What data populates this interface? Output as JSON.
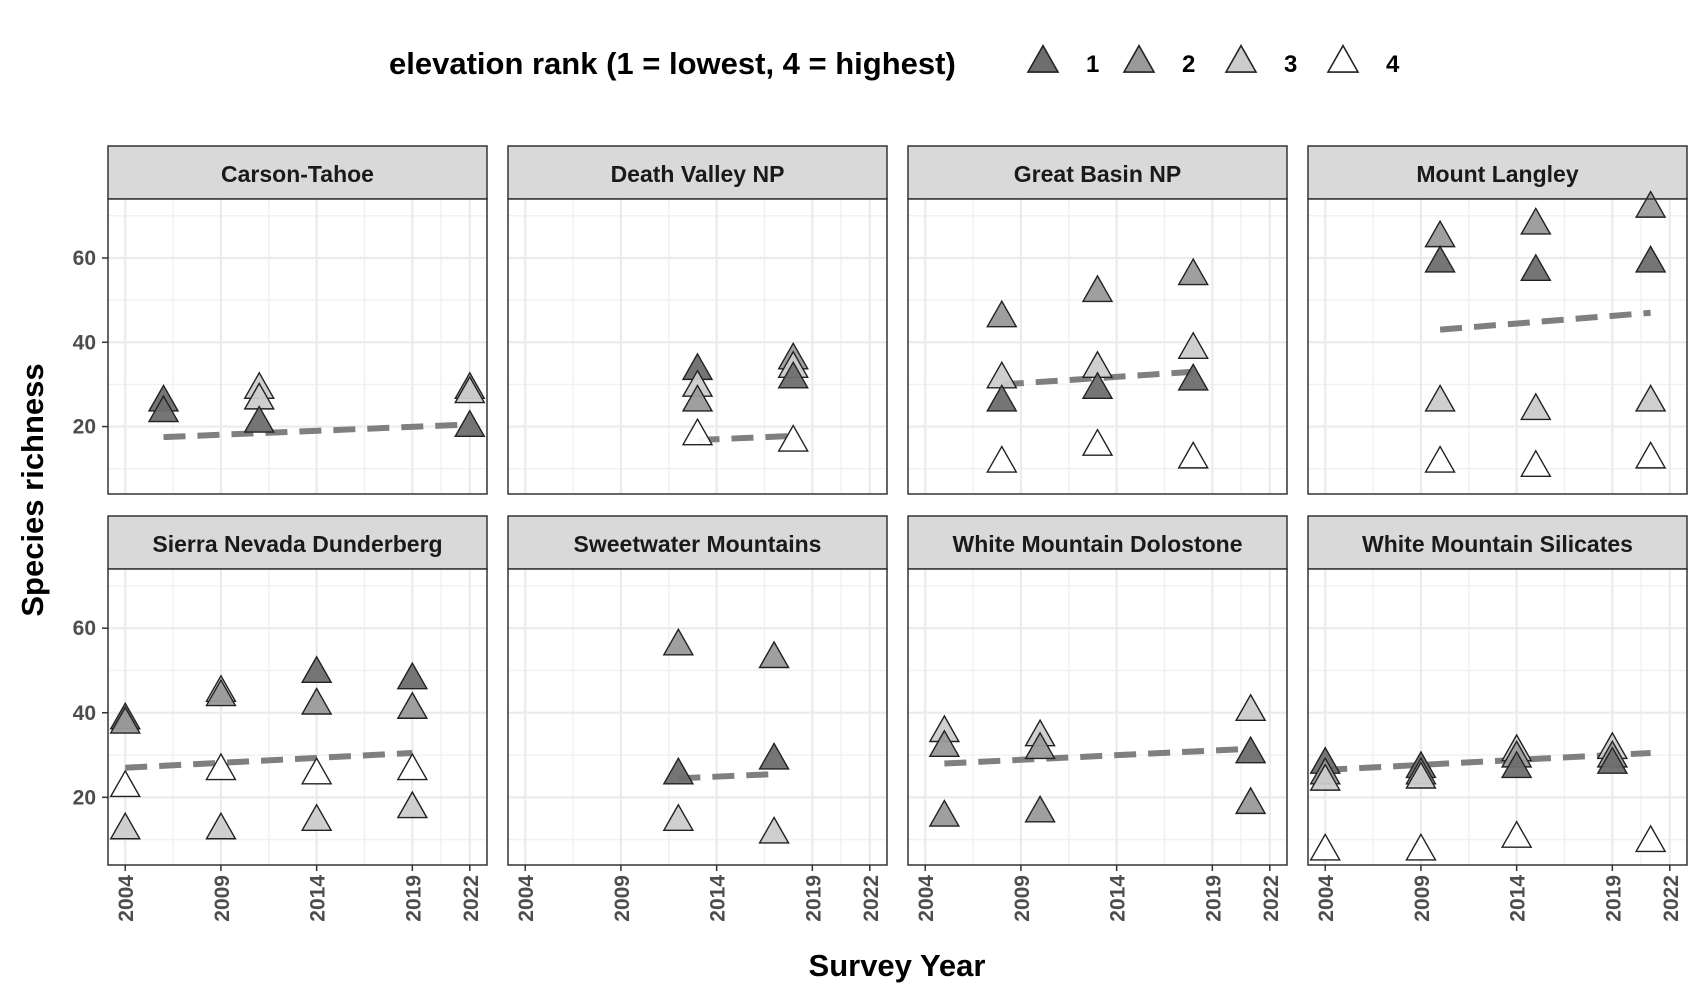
{
  "chart_data": {
    "type": "scatter",
    "xlabel": "Survey Year",
    "ylabel": "Species richness",
    "xticks": [
      2004,
      2009,
      2014,
      2019,
      2022
    ],
    "yticks": [
      20,
      40,
      60
    ],
    "xlim": [
      2003.1,
      2022.9
    ],
    "ylim": [
      4,
      74
    ],
    "legend": {
      "title": "elevation rank (1 = lowest, 4 = highest)",
      "position": "top",
      "items": [
        {
          "rank": "1",
          "label": "1",
          "color": "#6e6e6e"
        },
        {
          "rank": "2",
          "label": "2",
          "color": "#9a9a9a"
        },
        {
          "rank": "3",
          "label": "3",
          "color": "#cccccc"
        },
        {
          "rank": "4",
          "label": "4",
          "color": "#ffffff"
        }
      ]
    },
    "trend_color": "#7f7f7f",
    "panels": [
      {
        "name": "Carson-Tahoe",
        "points": [
          {
            "x": 2006,
            "y": 26,
            "rank": "1"
          },
          {
            "x": 2006,
            "y": 23.5,
            "rank": "1"
          },
          {
            "x": 2011,
            "y": 29,
            "rank": "3"
          },
          {
            "x": 2011,
            "y": 26.5,
            "rank": "3"
          },
          {
            "x": 2011,
            "y": 21,
            "rank": "1"
          },
          {
            "x": 2022,
            "y": 29,
            "rank": "2"
          },
          {
            "x": 2022,
            "y": 28,
            "rank": "3"
          },
          {
            "x": 2022,
            "y": 20,
            "rank": "1"
          }
        ],
        "trend": {
          "x": [
            2006,
            2022
          ],
          "y": [
            17.5,
            20.5
          ]
        }
      },
      {
        "name": "Death Valley NP",
        "points": [
          {
            "x": 2013,
            "y": 33.5,
            "rank": "1"
          },
          {
            "x": 2013,
            "y": 29.5,
            "rank": "3"
          },
          {
            "x": 2013,
            "y": 26,
            "rank": "2"
          },
          {
            "x": 2013,
            "y": 18,
            "rank": "4"
          },
          {
            "x": 2018,
            "y": 36,
            "rank": "2"
          },
          {
            "x": 2018,
            "y": 34,
            "rank": "3"
          },
          {
            "x": 2018,
            "y": 31.5,
            "rank": "1"
          },
          {
            "x": 2018,
            "y": 16.5,
            "rank": "4"
          }
        ],
        "trend": {
          "x": [
            2013,
            2018
          ],
          "y": [
            16.8,
            17.8
          ]
        }
      },
      {
        "name": "Great Basin NP",
        "points": [
          {
            "x": 2008,
            "y": 46,
            "rank": "2"
          },
          {
            "x": 2008,
            "y": 31.5,
            "rank": "3"
          },
          {
            "x": 2008,
            "y": 26,
            "rank": "1"
          },
          {
            "x": 2008,
            "y": 11.5,
            "rank": "4"
          },
          {
            "x": 2013,
            "y": 52,
            "rank": "2"
          },
          {
            "x": 2013,
            "y": 34,
            "rank": "3"
          },
          {
            "x": 2013,
            "y": 29,
            "rank": "1"
          },
          {
            "x": 2013,
            "y": 15.5,
            "rank": "4"
          },
          {
            "x": 2018,
            "y": 56,
            "rank": "2"
          },
          {
            "x": 2018,
            "y": 38.5,
            "rank": "3"
          },
          {
            "x": 2018,
            "y": 31,
            "rank": "1"
          },
          {
            "x": 2018,
            "y": 12.5,
            "rank": "4"
          }
        ],
        "trend": {
          "x": [
            2008,
            2018
          ],
          "y": [
            30,
            33
          ]
        }
      },
      {
        "name": "Mount Langley",
        "points": [
          {
            "x": 2010,
            "y": 65,
            "rank": "2"
          },
          {
            "x": 2010,
            "y": 59,
            "rank": "1"
          },
          {
            "x": 2010,
            "y": 26,
            "rank": "3"
          },
          {
            "x": 2010,
            "y": 11.5,
            "rank": "4"
          },
          {
            "x": 2015,
            "y": 68,
            "rank": "2"
          },
          {
            "x": 2015,
            "y": 57,
            "rank": "1"
          },
          {
            "x": 2015,
            "y": 24,
            "rank": "3"
          },
          {
            "x": 2015,
            "y": 10.5,
            "rank": "4"
          },
          {
            "x": 2021,
            "y": 72,
            "rank": "2"
          },
          {
            "x": 2021,
            "y": 59,
            "rank": "1"
          },
          {
            "x": 2021,
            "y": 26,
            "rank": "3"
          },
          {
            "x": 2021,
            "y": 12.5,
            "rank": "4"
          }
        ],
        "trend": {
          "x": [
            2010,
            2021
          ],
          "y": [
            43,
            47
          ]
        }
      },
      {
        "name": "Sierra Nevada Dunderberg",
        "points": [
          {
            "x": 2004,
            "y": 38.5,
            "rank": "1"
          },
          {
            "x": 2004,
            "y": 37.5,
            "rank": "2"
          },
          {
            "x": 2004,
            "y": 22.5,
            "rank": "4"
          },
          {
            "x": 2004,
            "y": 12.5,
            "rank": "3"
          },
          {
            "x": 2009,
            "y": 45,
            "rank": "3"
          },
          {
            "x": 2009,
            "y": 44,
            "rank": "2"
          },
          {
            "x": 2009,
            "y": 26.5,
            "rank": "4"
          },
          {
            "x": 2009,
            "y": 12.5,
            "rank": "3"
          },
          {
            "x": 2014,
            "y": 49.5,
            "rank": "1"
          },
          {
            "x": 2014,
            "y": 42,
            "rank": "2"
          },
          {
            "x": 2014,
            "y": 25.5,
            "rank": "4"
          },
          {
            "x": 2014,
            "y": 14.5,
            "rank": "3"
          },
          {
            "x": 2019,
            "y": 48,
            "rank": "1"
          },
          {
            "x": 2019,
            "y": 41,
            "rank": "2"
          },
          {
            "x": 2019,
            "y": 26.5,
            "rank": "4"
          },
          {
            "x": 2019,
            "y": 17.5,
            "rank": "3"
          }
        ],
        "trend": {
          "x": [
            2004,
            2019
          ],
          "y": [
            27,
            30.5
          ]
        }
      },
      {
        "name": "Sweetwater Mountains",
        "points": [
          {
            "x": 2012,
            "y": 56,
            "rank": "2"
          },
          {
            "x": 2012,
            "y": 25.5,
            "rank": "1"
          },
          {
            "x": 2012,
            "y": 14.5,
            "rank": "3"
          },
          {
            "x": 2017,
            "y": 53,
            "rank": "2"
          },
          {
            "x": 2017,
            "y": 29,
            "rank": "1"
          },
          {
            "x": 2017,
            "y": 11.5,
            "rank": "3"
          }
        ],
        "trend": {
          "x": [
            2012,
            2017
          ],
          "y": [
            24.5,
            25.5
          ]
        }
      },
      {
        "name": "White Mountain Dolostone",
        "points": [
          {
            "x": 2005,
            "y": 35.5,
            "rank": "3"
          },
          {
            "x": 2005,
            "y": 32,
            "rank": "2"
          },
          {
            "x": 2005,
            "y": 15.5,
            "rank": "2"
          },
          {
            "x": 2010,
            "y": 34.5,
            "rank": "3"
          },
          {
            "x": 2010,
            "y": 31.5,
            "rank": "2"
          },
          {
            "x": 2010,
            "y": 16.5,
            "rank": "2"
          },
          {
            "x": 2021,
            "y": 40.5,
            "rank": "3"
          },
          {
            "x": 2021,
            "y": 30.5,
            "rank": "1"
          },
          {
            "x": 2021,
            "y": 18.5,
            "rank": "2"
          }
        ],
        "trend": {
          "x": [
            2005,
            2021
          ],
          "y": [
            28,
            31.5
          ]
        }
      },
      {
        "name": "White Mountain Silicates",
        "points": [
          {
            "x": 2004,
            "y": 28,
            "rank": "1"
          },
          {
            "x": 2004,
            "y": 25.5,
            "rank": "2"
          },
          {
            "x": 2004,
            "y": 24,
            "rank": "3"
          },
          {
            "x": 2004,
            "y": 7.5,
            "rank": "4"
          },
          {
            "x": 2009,
            "y": 27,
            "rank": "1"
          },
          {
            "x": 2009,
            "y": 25.5,
            "rank": "2"
          },
          {
            "x": 2009,
            "y": 24.5,
            "rank": "3"
          },
          {
            "x": 2009,
            "y": 7.5,
            "rank": "4"
          },
          {
            "x": 2014,
            "y": 31,
            "rank": "3"
          },
          {
            "x": 2014,
            "y": 29.5,
            "rank": "2"
          },
          {
            "x": 2014,
            "y": 27,
            "rank": "1"
          },
          {
            "x": 2014,
            "y": 10.5,
            "rank": "4"
          },
          {
            "x": 2019,
            "y": 31.5,
            "rank": "3"
          },
          {
            "x": 2019,
            "y": 29.5,
            "rank": "2"
          },
          {
            "x": 2019,
            "y": 28,
            "rank": "1"
          },
          {
            "x": 2021,
            "y": 9.5,
            "rank": "4"
          }
        ],
        "trend": {
          "x": [
            2004,
            2021
          ],
          "y": [
            26.5,
            30.5
          ]
        }
      }
    ]
  }
}
